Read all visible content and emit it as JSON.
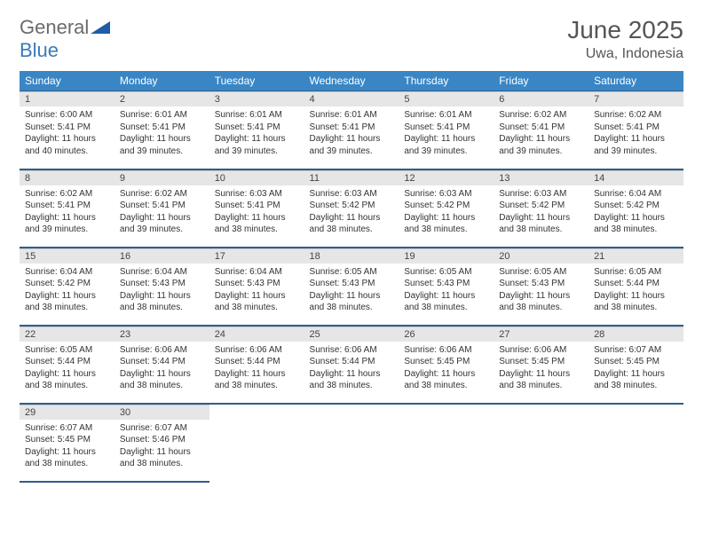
{
  "logo": {
    "part1": "General",
    "part2": "Blue"
  },
  "title": "June 2025",
  "location": "Uwa, Indonesia",
  "colors": {
    "header_bg": "#3a86c5",
    "header_border": "#2e5e8a",
    "daynum_bg": "#e6e6e6",
    "logo_gray": "#6b6b6b",
    "logo_blue": "#3a7ab8"
  },
  "weekdays": [
    "Sunday",
    "Monday",
    "Tuesday",
    "Wednesday",
    "Thursday",
    "Friday",
    "Saturday"
  ],
  "days": [
    {
      "n": 1,
      "sr": "6:00 AM",
      "ss": "5:41 PM",
      "dl": "11 hours and 40 minutes."
    },
    {
      "n": 2,
      "sr": "6:01 AM",
      "ss": "5:41 PM",
      "dl": "11 hours and 39 minutes."
    },
    {
      "n": 3,
      "sr": "6:01 AM",
      "ss": "5:41 PM",
      "dl": "11 hours and 39 minutes."
    },
    {
      "n": 4,
      "sr": "6:01 AM",
      "ss": "5:41 PM",
      "dl": "11 hours and 39 minutes."
    },
    {
      "n": 5,
      "sr": "6:01 AM",
      "ss": "5:41 PM",
      "dl": "11 hours and 39 minutes."
    },
    {
      "n": 6,
      "sr": "6:02 AM",
      "ss": "5:41 PM",
      "dl": "11 hours and 39 minutes."
    },
    {
      "n": 7,
      "sr": "6:02 AM",
      "ss": "5:41 PM",
      "dl": "11 hours and 39 minutes."
    },
    {
      "n": 8,
      "sr": "6:02 AM",
      "ss": "5:41 PM",
      "dl": "11 hours and 39 minutes."
    },
    {
      "n": 9,
      "sr": "6:02 AM",
      "ss": "5:41 PM",
      "dl": "11 hours and 39 minutes."
    },
    {
      "n": 10,
      "sr": "6:03 AM",
      "ss": "5:41 PM",
      "dl": "11 hours and 38 minutes."
    },
    {
      "n": 11,
      "sr": "6:03 AM",
      "ss": "5:42 PM",
      "dl": "11 hours and 38 minutes."
    },
    {
      "n": 12,
      "sr": "6:03 AM",
      "ss": "5:42 PM",
      "dl": "11 hours and 38 minutes."
    },
    {
      "n": 13,
      "sr": "6:03 AM",
      "ss": "5:42 PM",
      "dl": "11 hours and 38 minutes."
    },
    {
      "n": 14,
      "sr": "6:04 AM",
      "ss": "5:42 PM",
      "dl": "11 hours and 38 minutes."
    },
    {
      "n": 15,
      "sr": "6:04 AM",
      "ss": "5:42 PM",
      "dl": "11 hours and 38 minutes."
    },
    {
      "n": 16,
      "sr": "6:04 AM",
      "ss": "5:43 PM",
      "dl": "11 hours and 38 minutes."
    },
    {
      "n": 17,
      "sr": "6:04 AM",
      "ss": "5:43 PM",
      "dl": "11 hours and 38 minutes."
    },
    {
      "n": 18,
      "sr": "6:05 AM",
      "ss": "5:43 PM",
      "dl": "11 hours and 38 minutes."
    },
    {
      "n": 19,
      "sr": "6:05 AM",
      "ss": "5:43 PM",
      "dl": "11 hours and 38 minutes."
    },
    {
      "n": 20,
      "sr": "6:05 AM",
      "ss": "5:43 PM",
      "dl": "11 hours and 38 minutes."
    },
    {
      "n": 21,
      "sr": "6:05 AM",
      "ss": "5:44 PM",
      "dl": "11 hours and 38 minutes."
    },
    {
      "n": 22,
      "sr": "6:05 AM",
      "ss": "5:44 PM",
      "dl": "11 hours and 38 minutes."
    },
    {
      "n": 23,
      "sr": "6:06 AM",
      "ss": "5:44 PM",
      "dl": "11 hours and 38 minutes."
    },
    {
      "n": 24,
      "sr": "6:06 AM",
      "ss": "5:44 PM",
      "dl": "11 hours and 38 minutes."
    },
    {
      "n": 25,
      "sr": "6:06 AM",
      "ss": "5:44 PM",
      "dl": "11 hours and 38 minutes."
    },
    {
      "n": 26,
      "sr": "6:06 AM",
      "ss": "5:45 PM",
      "dl": "11 hours and 38 minutes."
    },
    {
      "n": 27,
      "sr": "6:06 AM",
      "ss": "5:45 PM",
      "dl": "11 hours and 38 minutes."
    },
    {
      "n": 28,
      "sr": "6:07 AM",
      "ss": "5:45 PM",
      "dl": "11 hours and 38 minutes."
    },
    {
      "n": 29,
      "sr": "6:07 AM",
      "ss": "5:45 PM",
      "dl": "11 hours and 38 minutes."
    },
    {
      "n": 30,
      "sr": "6:07 AM",
      "ss": "5:46 PM",
      "dl": "11 hours and 38 minutes."
    }
  ],
  "labels": {
    "sunrise": "Sunrise:",
    "sunset": "Sunset:",
    "daylight": "Daylight:"
  },
  "start_weekday": 0,
  "days_in_month": 30
}
